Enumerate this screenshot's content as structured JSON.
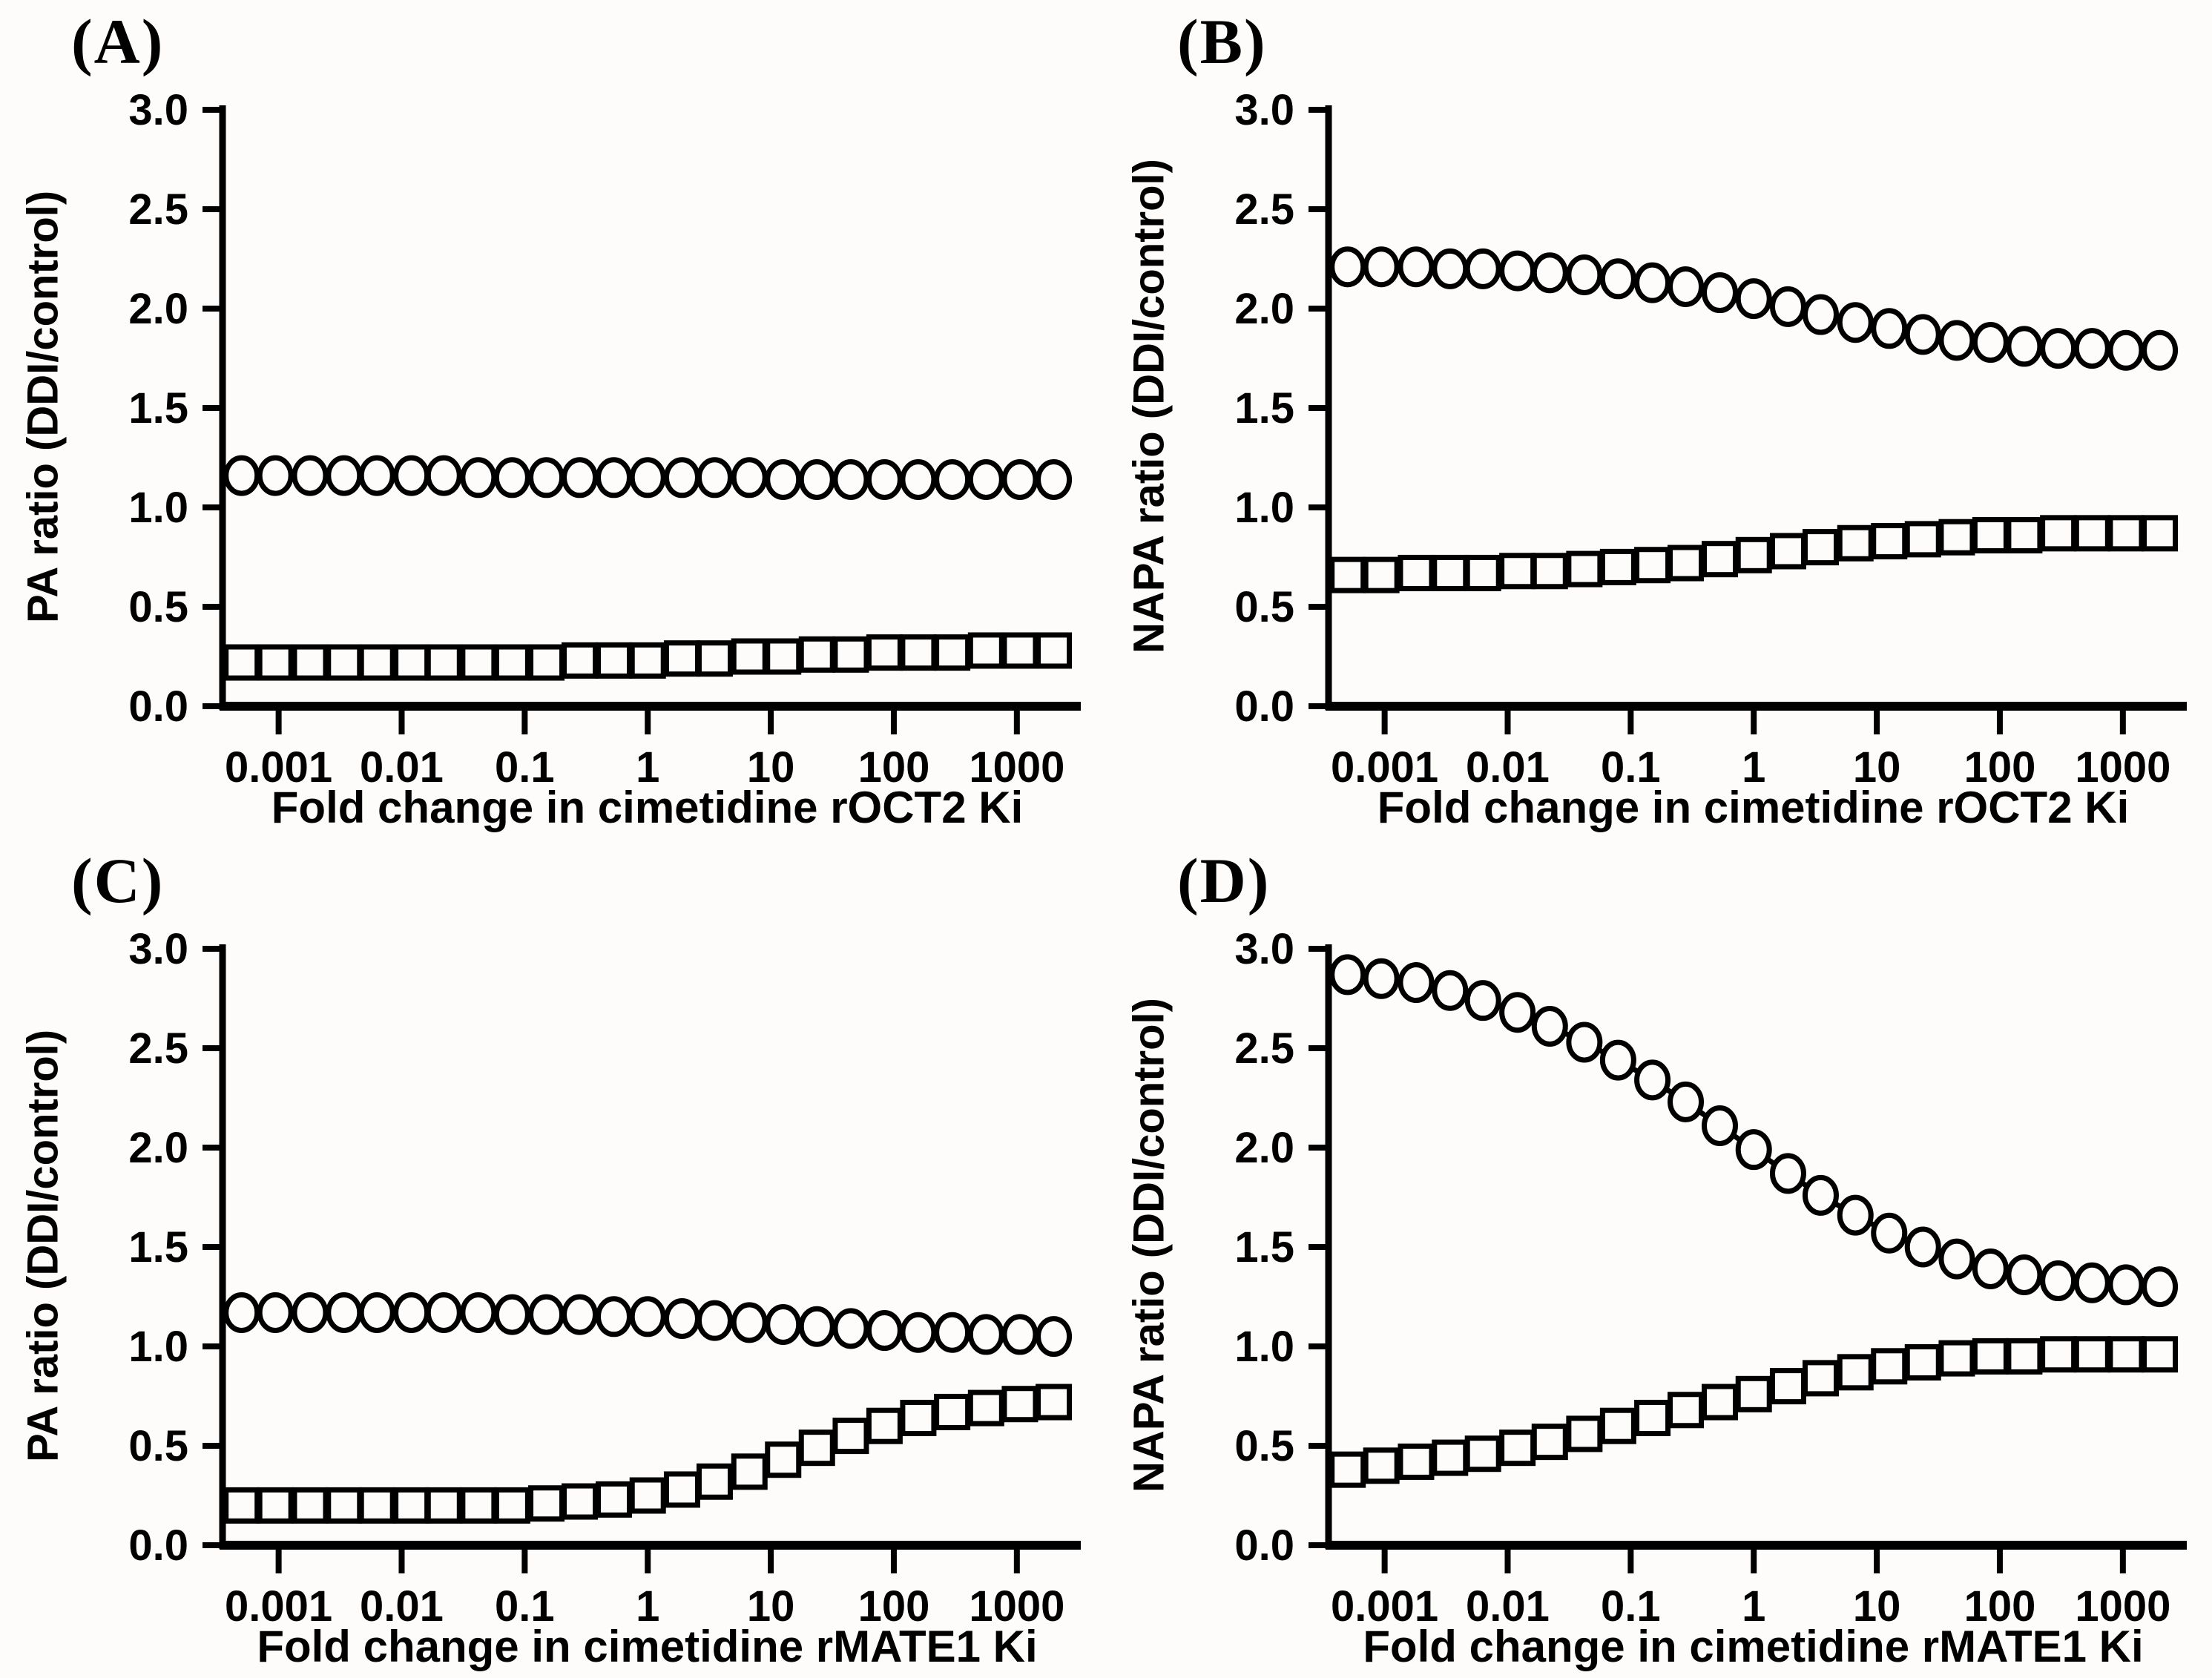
{
  "figure": {
    "background": "#fdfcfa",
    "ink": "#000000",
    "marker_fill": "#fdfcfa"
  },
  "chart_data": [
    {
      "id": "A",
      "panel_label": "(A)",
      "type": "scatter",
      "x_scale": "log",
      "xlabel": "Fold change in cimetidine rOCT2 Ki",
      "ylabel": "PA ratio (DDI/control)",
      "xlim": [
        0.00035,
        2800
      ],
      "ylim": [
        0.0,
        3.0
      ],
      "yticks": [
        "0.0",
        "0.5",
        "1.0",
        "1.5",
        "2.0",
        "2.5",
        "3.0"
      ],
      "xticks": [
        "0.001",
        "0.01",
        "0.1",
        "1",
        "10",
        "100",
        "1000"
      ],
      "grid": false,
      "legend": "none",
      "x": [
        0.0005,
        0.00094,
        0.0018,
        0.0034,
        0.0063,
        0.012,
        0.022,
        0.042,
        0.079,
        0.15,
        0.28,
        0.53,
        1,
        1.9,
        3.5,
        6.7,
        12.6,
        23.7,
        44.7,
        84,
        158,
        298,
        562,
        1059,
        1995
      ],
      "series": [
        {
          "name": "circle-series",
          "marker": "circle",
          "values": [
            1.16,
            1.16,
            1.16,
            1.16,
            1.16,
            1.16,
            1.16,
            1.15,
            1.15,
            1.15,
            1.15,
            1.15,
            1.15,
            1.15,
            1.15,
            1.15,
            1.14,
            1.14,
            1.14,
            1.14,
            1.14,
            1.14,
            1.14,
            1.14,
            1.14
          ]
        },
        {
          "name": "square-series",
          "marker": "square",
          "values": [
            0.22,
            0.22,
            0.22,
            0.22,
            0.22,
            0.22,
            0.22,
            0.22,
            0.22,
            0.22,
            0.23,
            0.23,
            0.23,
            0.24,
            0.24,
            0.25,
            0.25,
            0.26,
            0.26,
            0.27,
            0.27,
            0.27,
            0.28,
            0.28,
            0.28
          ]
        }
      ]
    },
    {
      "id": "B",
      "panel_label": "(B)",
      "type": "scatter",
      "x_scale": "log",
      "xlabel": "Fold change in cimetidine rOCT2 Ki",
      "ylabel": "NAPA ratio (DDI/control)",
      "xlim": [
        0.00035,
        2800
      ],
      "ylim": [
        0.0,
        3.0
      ],
      "yticks": [
        "0.0",
        "0.5",
        "1.0",
        "1.5",
        "2.0",
        "2.5",
        "3.0"
      ],
      "xticks": [
        "0.001",
        "0.01",
        "0.1",
        "1",
        "10",
        "100",
        "1000"
      ],
      "grid": false,
      "legend": "none",
      "x": [
        0.0005,
        0.00094,
        0.0018,
        0.0034,
        0.0063,
        0.012,
        0.022,
        0.042,
        0.079,
        0.15,
        0.28,
        0.53,
        1,
        1.9,
        3.5,
        6.7,
        12.6,
        23.7,
        44.7,
        84,
        158,
        298,
        562,
        1059,
        1995
      ],
      "series": [
        {
          "name": "circle-series",
          "marker": "circle",
          "values": [
            2.21,
            2.21,
            2.21,
            2.2,
            2.2,
            2.19,
            2.18,
            2.17,
            2.15,
            2.13,
            2.11,
            2.08,
            2.05,
            2.01,
            1.97,
            1.93,
            1.9,
            1.87,
            1.84,
            1.83,
            1.81,
            1.8,
            1.8,
            1.79,
            1.79
          ]
        },
        {
          "name": "square-series",
          "marker": "square",
          "values": [
            0.66,
            0.66,
            0.67,
            0.67,
            0.67,
            0.68,
            0.68,
            0.69,
            0.7,
            0.71,
            0.72,
            0.74,
            0.76,
            0.78,
            0.8,
            0.82,
            0.83,
            0.84,
            0.85,
            0.86,
            0.86,
            0.87,
            0.87,
            0.87,
            0.87
          ]
        }
      ]
    },
    {
      "id": "C",
      "panel_label": "(C)",
      "type": "scatter",
      "x_scale": "log",
      "xlabel": "Fold change in cimetidine rMATE1 Ki",
      "ylabel": "PA ratio (DDI/control)",
      "xlim": [
        0.00035,
        2800
      ],
      "ylim": [
        0.0,
        3.0
      ],
      "yticks": [
        "0.0",
        "0.5",
        "1.0",
        "1.5",
        "2.0",
        "2.5",
        "3.0"
      ],
      "xticks": [
        "0.001",
        "0.01",
        "0.1",
        "1",
        "10",
        "100",
        "1000"
      ],
      "grid": false,
      "legend": "none",
      "x": [
        0.0005,
        0.00094,
        0.0018,
        0.0034,
        0.0063,
        0.012,
        0.022,
        0.042,
        0.079,
        0.15,
        0.28,
        0.53,
        1,
        1.9,
        3.5,
        6.7,
        12.6,
        23.7,
        44.7,
        84,
        158,
        298,
        562,
        1059,
        1995
      ],
      "series": [
        {
          "name": "circle-series",
          "marker": "circle",
          "values": [
            1.17,
            1.17,
            1.17,
            1.17,
            1.17,
            1.17,
            1.17,
            1.17,
            1.16,
            1.16,
            1.16,
            1.15,
            1.15,
            1.14,
            1.13,
            1.12,
            1.11,
            1.1,
            1.09,
            1.08,
            1.07,
            1.07,
            1.06,
            1.06,
            1.05
          ]
        },
        {
          "name": "square-series",
          "marker": "square",
          "values": [
            0.2,
            0.2,
            0.2,
            0.2,
            0.2,
            0.2,
            0.2,
            0.2,
            0.2,
            0.21,
            0.22,
            0.23,
            0.25,
            0.28,
            0.32,
            0.37,
            0.43,
            0.49,
            0.55,
            0.6,
            0.64,
            0.67,
            0.69,
            0.71,
            0.72
          ]
        }
      ]
    },
    {
      "id": "D",
      "panel_label": "(D)",
      "type": "scatter",
      "x_scale": "log",
      "xlabel": "Fold change in cimetidine rMATE1 Ki",
      "ylabel": "NAPA ratio (DDI/control)",
      "xlim": [
        0.00035,
        2800
      ],
      "ylim": [
        0.0,
        3.0
      ],
      "yticks": [
        "0.0",
        "0.5",
        "1.0",
        "1.5",
        "2.0",
        "2.5",
        "3.0"
      ],
      "xticks": [
        "0.001",
        "0.01",
        "0.1",
        "1",
        "10",
        "100",
        "1000"
      ],
      "grid": false,
      "legend": "none",
      "x": [
        0.0005,
        0.00094,
        0.0018,
        0.0034,
        0.0063,
        0.012,
        0.022,
        0.042,
        0.079,
        0.15,
        0.28,
        0.53,
        1,
        1.9,
        3.5,
        6.7,
        12.6,
        23.7,
        44.7,
        84,
        158,
        298,
        562,
        1059,
        1995
      ],
      "series": [
        {
          "name": "circle-series",
          "marker": "circle",
          "values": [
            2.87,
            2.85,
            2.83,
            2.79,
            2.74,
            2.68,
            2.61,
            2.53,
            2.44,
            2.34,
            2.23,
            2.11,
            1.99,
            1.87,
            1.76,
            1.66,
            1.57,
            1.5,
            1.44,
            1.39,
            1.36,
            1.33,
            1.32,
            1.31,
            1.3
          ]
        },
        {
          "name": "square-series",
          "marker": "square",
          "values": [
            0.38,
            0.4,
            0.42,
            0.44,
            0.46,
            0.49,
            0.52,
            0.56,
            0.6,
            0.64,
            0.68,
            0.72,
            0.76,
            0.8,
            0.84,
            0.87,
            0.9,
            0.92,
            0.94,
            0.95,
            0.95,
            0.96,
            0.96,
            0.96,
            0.96
          ]
        }
      ]
    }
  ]
}
